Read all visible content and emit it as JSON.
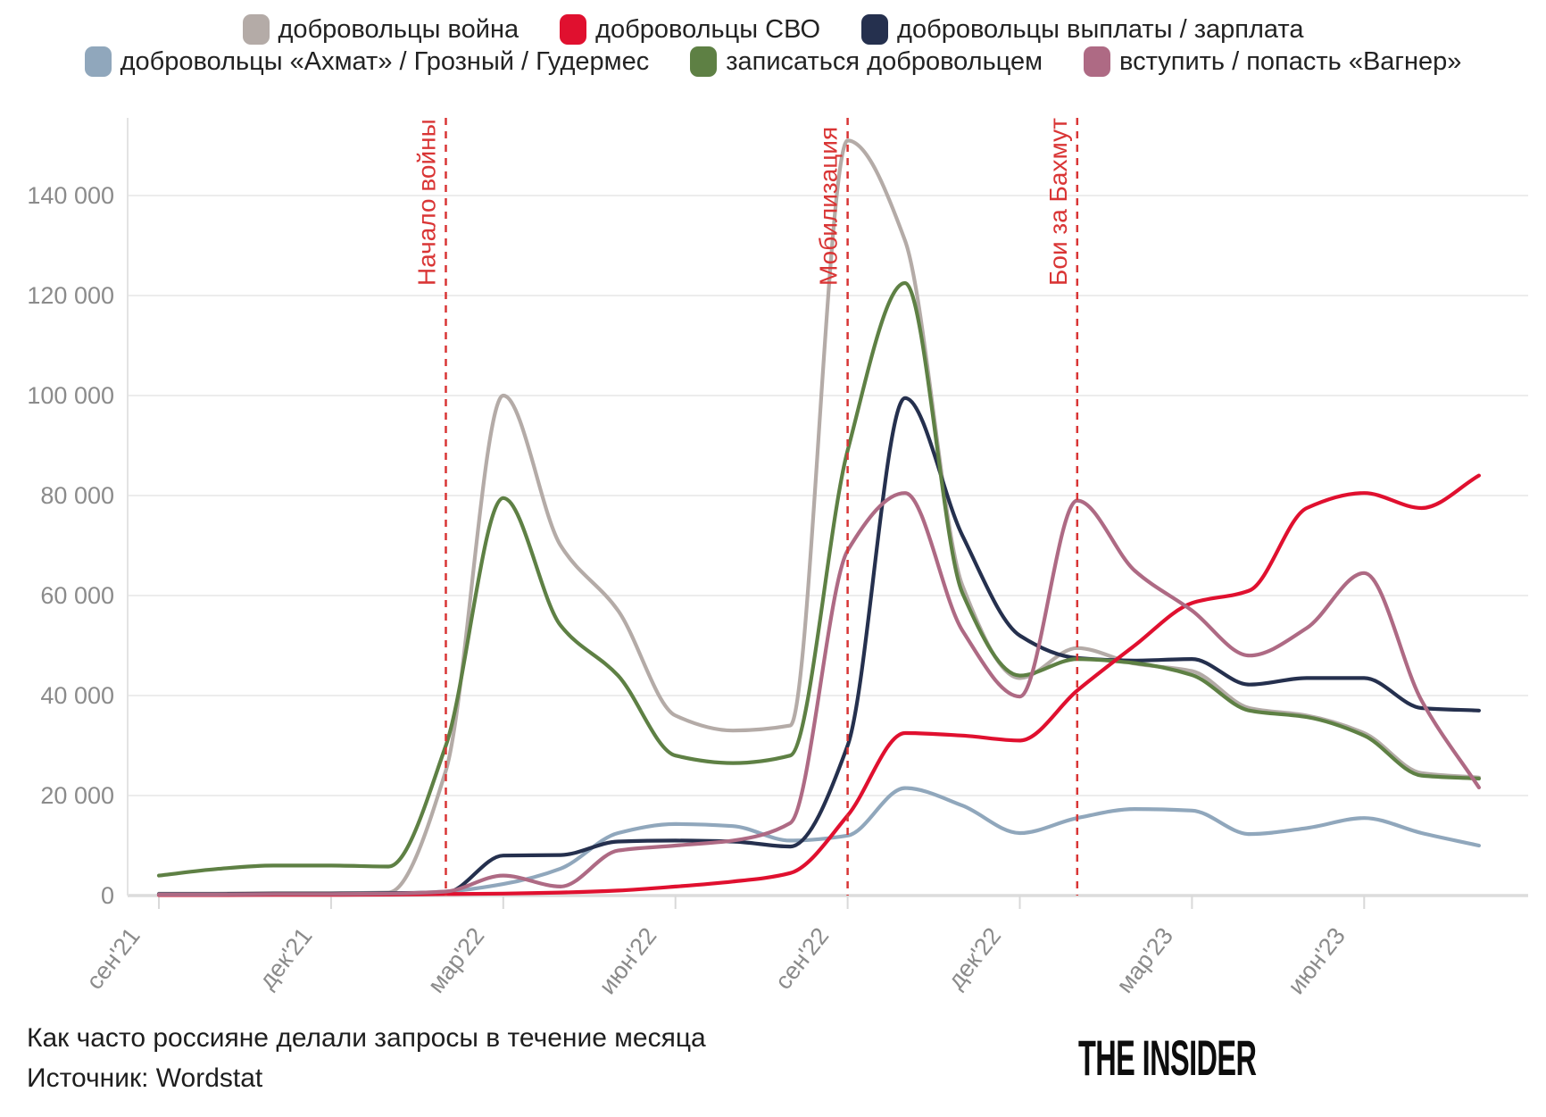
{
  "branding": {
    "logo_text": "THE INSIDER"
  },
  "chart_data": {
    "type": "line",
    "title": "Как часто россияне делали запросы в течение месяца",
    "source": "Источник: Wordstat",
    "legend_position": "top",
    "grid": "horizontal",
    "x_unit": "month",
    "x": [
      "2021-09",
      "2021-10",
      "2021-11",
      "2021-12",
      "2022-01",
      "2022-02",
      "2022-03",
      "2022-04",
      "2022-05",
      "2022-06",
      "2022-07",
      "2022-08",
      "2022-09",
      "2022-10",
      "2022-11",
      "2022-12",
      "2023-01",
      "2023-02",
      "2023-03",
      "2023-04",
      "2023-05",
      "2023-06",
      "2023-07",
      "2023-08"
    ],
    "xticks": [
      {
        "label": "сен'21",
        "index": 0
      },
      {
        "label": "дек'21",
        "index": 3
      },
      {
        "label": "мар'22",
        "index": 6
      },
      {
        "label": "июн'22",
        "index": 9
      },
      {
        "label": "сен'22",
        "index": 12
      },
      {
        "label": "дек'22",
        "index": 15
      },
      {
        "label": "мар'23",
        "index": 18
      },
      {
        "label": "июн'23",
        "index": 21
      }
    ],
    "ylim": [
      0,
      155000
    ],
    "yticks": [
      {
        "value": 0,
        "label": "0"
      },
      {
        "value": 20000,
        "label": "20 000"
      },
      {
        "value": 40000,
        "label": "40 000"
      },
      {
        "value": 60000,
        "label": "60 000"
      },
      {
        "value": 80000,
        "label": "80 000"
      },
      {
        "value": 100000,
        "label": "100 000"
      },
      {
        "value": 120000,
        "label": "120 000"
      },
      {
        "value": 140000,
        "label": "140 000"
      }
    ],
    "annotations": [
      {
        "label": "Начало войны",
        "month_index": 5
      },
      {
        "label": "Мобилизация",
        "month_index": 12
      },
      {
        "label": "Бои за Бахмут",
        "month_index": 16
      }
    ],
    "annotation_color": "#d93535",
    "series": [
      {
        "id": "volunteers-war",
        "name": "добровольцы война",
        "color": "#b4aba7",
        "values": [
          400,
          400,
          500,
          500,
          600,
          25000,
          100000,
          70000,
          57000,
          36000,
          33000,
          34000,
          151000,
          131000,
          62000,
          43500,
          49500,
          46400,
          44900,
          37500,
          36000,
          32500,
          24500,
          23600
        ]
      },
      {
        "id": "volunteers-svo",
        "name": "добровольцы СВО",
        "color": "#e0102f",
        "values": [
          100,
          100,
          150,
          150,
          200,
          300,
          400,
          600,
          1000,
          1800,
          2800,
          4500,
          16000,
          32500,
          32000,
          31000,
          41000,
          50000,
          58500,
          61000,
          77500,
          80500,
          77500,
          84000
        ]
      },
      {
        "id": "volunteers-payments",
        "name": "добровольцы выплаты / зарплата",
        "color": "#25304e",
        "values": [
          300,
          300,
          400,
          400,
          500,
          600,
          8000,
          8100,
          10800,
          11000,
          10800,
          9800,
          30000,
          99500,
          72000,
          52000,
          47500,
          47000,
          47300,
          42200,
          43500,
          43500,
          37500,
          37000
        ]
      },
      {
        "id": "volunteers-akhmat",
        "name": "добровольцы «Ахмат» / Грозный / Гудермес",
        "color": "#90a7bc",
        "values": [
          200,
          200,
          300,
          300,
          400,
          800,
          2300,
          5400,
          12500,
          14300,
          13900,
          11000,
          12000,
          21500,
          18000,
          12500,
          15500,
          17300,
          17000,
          12300,
          13500,
          15500,
          12500,
          10000
        ]
      },
      {
        "id": "sign-up-volunteer",
        "name": "записаться добровольцем",
        "color": "#5e8044",
        "values": [
          4000,
          5300,
          6000,
          6000,
          5800,
          30000,
          79500,
          54000,
          44000,
          28000,
          26500,
          28000,
          89000,
          122500,
          60500,
          44000,
          47300,
          46500,
          44100,
          37000,
          35700,
          32000,
          24000,
          23400
        ]
      },
      {
        "id": "join-wagner",
        "name": "вступить / попасть «Вагнер»",
        "color": "#ae6a84",
        "values": [
          200,
          200,
          300,
          300,
          400,
          800,
          4000,
          1800,
          9000,
          10000,
          11000,
          14500,
          69000,
          80500,
          53000,
          39800,
          79000,
          65000,
          57000,
          48000,
          53500,
          64500,
          39000,
          21600
        ]
      }
    ],
    "legend_row_break": 3,
    "draw_order": [
      0,
      3,
      2,
      4,
      1,
      5
    ]
  }
}
